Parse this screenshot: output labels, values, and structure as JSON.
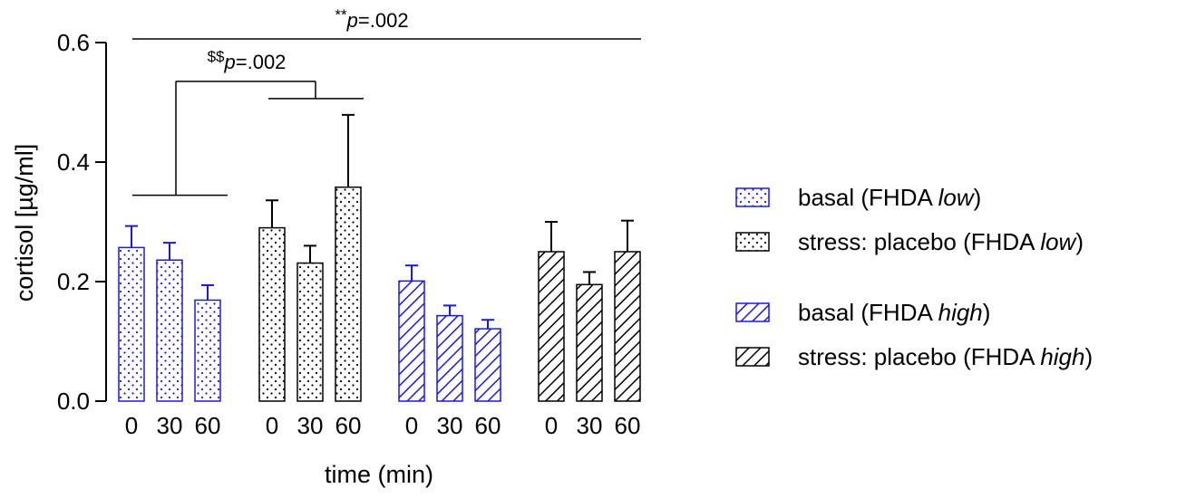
{
  "chart_data": {
    "type": "bar",
    "xlabel": "time (min)",
    "ylabel": "cortisol [µg/ml]",
    "ylim": [
      0,
      0.6
    ],
    "yticks": [
      "0.0",
      "0.2",
      "0.4",
      "0.6"
    ],
    "grid": false,
    "legend_position": "right",
    "colors": {
      "blue": "#1a1adb",
      "black": "#000000"
    },
    "series": [
      {
        "name_plain": "basal (FHDA ",
        "name_italic": "low",
        "name_tail": ")",
        "pattern": "dots",
        "color": "#1a1adb",
        "categories": [
          "0",
          "30",
          "60"
        ],
        "values": [
          0.257,
          0.236,
          0.169
        ],
        "errors": [
          0.036,
          0.029,
          0.025
        ]
      },
      {
        "name_plain": "stress: placebo (FHDA ",
        "name_italic": "low",
        "name_tail": ")",
        "pattern": "dots",
        "color": "#000000",
        "categories": [
          "0",
          "30",
          "60"
        ],
        "values": [
          0.29,
          0.231,
          0.358
        ],
        "errors": [
          0.046,
          0.029,
          0.121
        ]
      },
      {
        "name_plain": "basal (FHDA ",
        "name_italic": "high",
        "name_tail": ")",
        "pattern": "hatch",
        "color": "#1a1adb",
        "categories": [
          "0",
          "30",
          "60"
        ],
        "values": [
          0.201,
          0.143,
          0.121
        ],
        "errors": [
          0.026,
          0.017,
          0.015
        ]
      },
      {
        "name_plain": "stress: placebo (FHDA ",
        "name_italic": "high",
        "name_tail": ")",
        "pattern": "hatch",
        "color": "#000000",
        "categories": [
          "0",
          "30",
          "60"
        ],
        "values": [
          0.25,
          0.195,
          0.25
        ],
        "errors": [
          0.05,
          0.021,
          0.052
        ]
      }
    ],
    "annotations": [
      {
        "prefix": "**",
        "italic": "p",
        "value": "=.002",
        "from_group": 0,
        "to_group": 3,
        "level": 0.606
      },
      {
        "prefix": "$$",
        "italic": "p",
        "value": "=.002",
        "from_group": 0,
        "to_group": 1,
        "level": 0.535
      }
    ]
  }
}
